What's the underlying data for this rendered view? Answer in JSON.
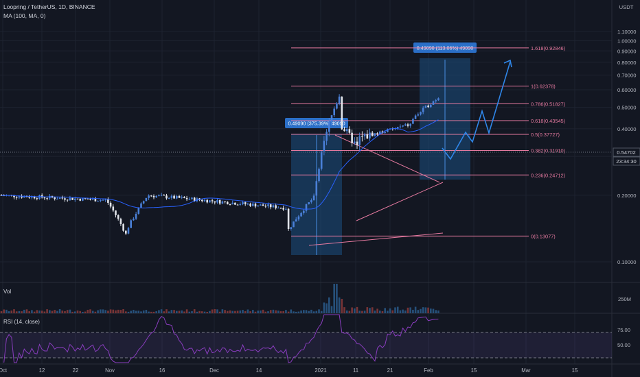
{
  "header": {
    "symbol": "Loopring / TetherUS, 1D, BINANCE",
    "ma_label": "MA (100, MA, 0)",
    "currency": "USDT"
  },
  "price_axis": {
    "ticks": [
      "1.10000",
      "1.00000",
      "0.90000",
      "0.80000",
      "0.70000",
      "0.60000",
      "0.50000",
      "0.40000",
      "0.30000",
      "0.20000",
      "0.10000"
    ],
    "last_price": "0.54702",
    "countdown": "23:34:30"
  },
  "fib_levels": [
    {
      "label": "1.618(0.92846)",
      "value": 0.92846,
      "color": "#e67aa0"
    },
    {
      "label": "1(0.62378)",
      "value": 0.62378,
      "color": "#e67aa0"
    },
    {
      "label": "0.786(0.51827)",
      "value": 0.51827,
      "color": "#e67aa0"
    },
    {
      "label": "0.618(0.43545)",
      "value": 0.43545,
      "color": "#e67aa0"
    },
    {
      "label": "0.5(0.37727)",
      "value": 0.37727,
      "color": "#e67aa0"
    },
    {
      "label": "0.382(0.31910)",
      "value": 0.3191,
      "color": "#e67aa0"
    },
    {
      "label": "0.236(0.24712)",
      "value": 0.24712,
      "color": "#e67aa0"
    },
    {
      "label": "0(0.13077)",
      "value": 0.13077,
      "color": "#e67aa0"
    }
  ],
  "measure_boxes": [
    {
      "label": "0.49090 (375.39%) 49090"
    },
    {
      "label": "0.49090 (113.06%) 49090"
    }
  ],
  "volume_panel": {
    "label": "Vol",
    "tick": "250M"
  },
  "rsi_panel": {
    "label": "RSI (14, close)",
    "ticks": [
      "75.00",
      "50.00"
    ]
  },
  "time_axis": {
    "labels": [
      "Oct",
      "12",
      "22",
      "Nov",
      "16",
      "Dec",
      "14",
      "2021",
      "11",
      "21",
      "Feb",
      "15",
      "Mar",
      "15"
    ]
  },
  "colors": {
    "background": "#131722",
    "up": "#26a69a",
    "down": "#ef5350",
    "candle_up": "#4a80d8",
    "candle_down": "#e1e4ea",
    "measure_fill": "#1c4e80",
    "projection": "#2f86e8",
    "fib_line": "#e67aa0",
    "rsi": "#8a3dbf"
  },
  "chart_data": {
    "type": "candlestick",
    "title": "Loopring / TetherUS, 1D, BINANCE",
    "ylabel": "USDT",
    "ylim": [
      0.05,
      1.13
    ],
    "last_price": 0.54702,
    "x_range": [
      "2020-10-01",
      "2021-03-26"
    ],
    "close_by_segment": [
      {
        "period": "Oct 2020",
        "low": 0.17,
        "high": 0.22
      },
      {
        "period": "Nov 2020",
        "low": 0.12,
        "high": 0.25
      },
      {
        "period": "Dec 2020",
        "low": 0.14,
        "high": 0.22
      },
      {
        "period": "Jan 2021",
        "low": 0.13,
        "high": 0.62
      },
      {
        "period": "Feb 2021",
        "low": 0.43,
        "high": 0.6
      }
    ],
    "fibonacci": [
      {
        "ratio": 1.618,
        "price": 0.92846
      },
      {
        "ratio": 1,
        "price": 0.62378
      },
      {
        "ratio": 0.786,
        "price": 0.51827
      },
      {
        "ratio": 0.618,
        "price": 0.43545
      },
      {
        "ratio": 0.5,
        "price": 0.37727
      },
      {
        "ratio": 0.382,
        "price": 0.3191
      },
      {
        "ratio": 0.236,
        "price": 0.24712
      },
      {
        "ratio": 0,
        "price": 0.13077
      }
    ],
    "rsi_levels": [
      70,
      30
    ]
  }
}
